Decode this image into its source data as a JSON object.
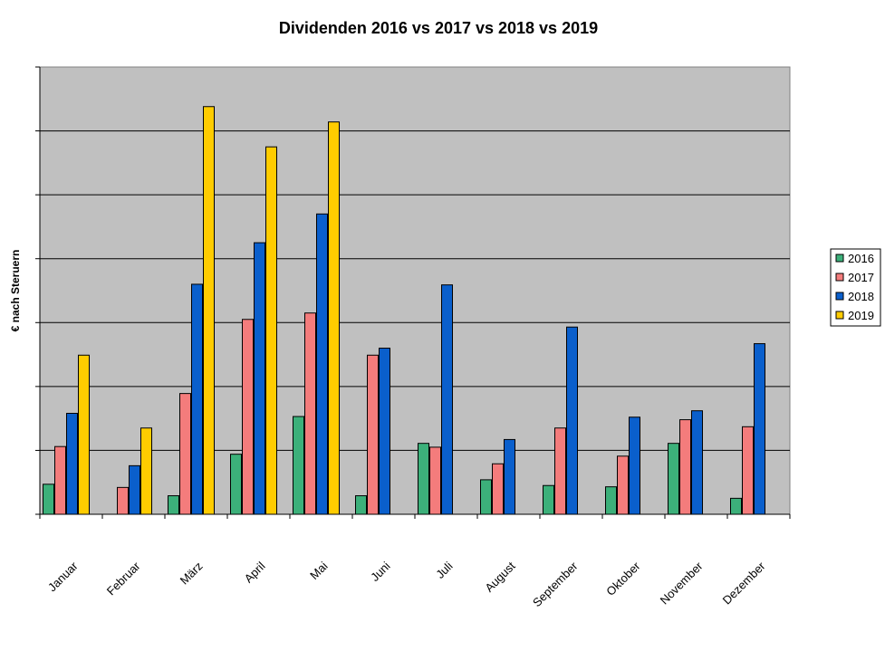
{
  "chart_data": {
    "type": "bar",
    "title": "Dividenden 2016 vs 2017 vs 2018 vs 2019",
    "xlabel": "",
    "ylabel": "€ nach Steruern",
    "ylim": [
      0,
      70
    ],
    "grid": true,
    "legend_position": "right",
    "categories": [
      "Januar",
      "Februar",
      "März",
      "April",
      "Mai",
      "Juni",
      "Juli",
      "August",
      "September",
      "Oktober",
      "November",
      "Dezember"
    ],
    "series": [
      {
        "name": "2016",
        "color": "#3CB07A",
        "values": [
          4.7,
          0,
          2.9,
          9.4,
          15.3,
          2.9,
          11.1,
          5.4,
          4.5,
          4.3,
          11.1,
          2.5
        ]
      },
      {
        "name": "2017",
        "color": "#F47C7C",
        "values": [
          10.6,
          4.2,
          18.9,
          30.5,
          31.5,
          24.9,
          10.5,
          7.9,
          13.5,
          9.1,
          14.8,
          13.7
        ]
      },
      {
        "name": "2018",
        "color": "#0A5FCC",
        "values": [
          15.8,
          7.6,
          36.0,
          42.5,
          47.0,
          26.0,
          35.9,
          11.7,
          29.3,
          15.2,
          16.2,
          26.7
        ]
      },
      {
        "name": "2019",
        "color": "#FFCC00",
        "values": [
          24.9,
          13.5,
          63.8,
          57.5,
          61.4,
          null,
          null,
          null,
          null,
          null,
          null,
          null
        ]
      }
    ]
  }
}
